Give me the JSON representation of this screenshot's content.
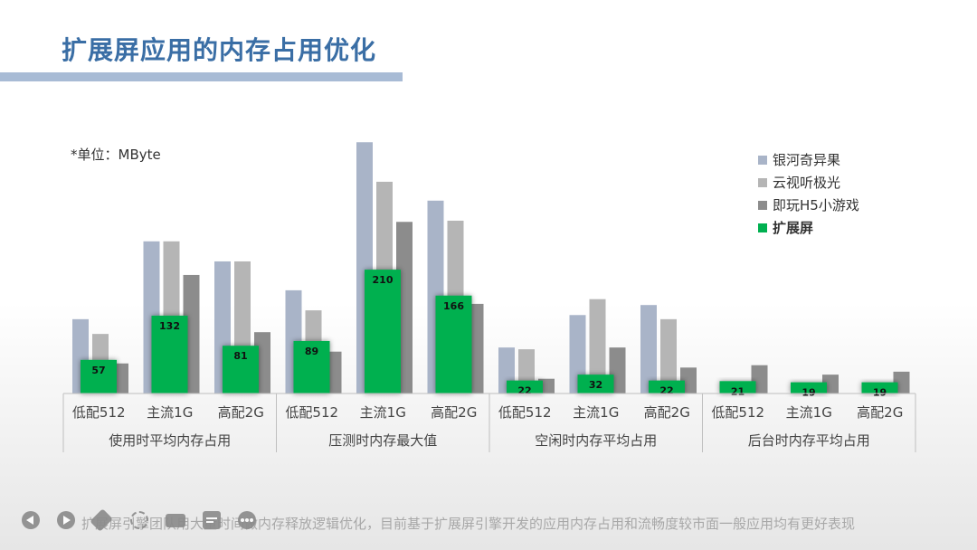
{
  "title": "扩展屏应用的内存占用优化",
  "unit_label": "*单位：MByte",
  "footer": "扩展屏引擎团队用大量时间做内存释放逻辑优化，目前基于扩展屏引擎开发的应用内存占用和流畅度较市面一般应用均有更好表现",
  "controls": [
    "prev-icon",
    "next-icon",
    "pen-icon",
    "focus-icon",
    "camera-icon",
    "subtitle-icon",
    "more-icon"
  ],
  "chart_data": {
    "type": "bar",
    "title": "",
    "groups": [
      "使用时平均内存占用",
      "压测时内存最大值",
      "空闲时内存平均占用",
      "后台时内存平均占用"
    ],
    "categories": [
      "低配512",
      "主流1G",
      "高配2G",
      "低配512",
      "主流1G",
      "高配2G",
      "低配512",
      "主流1G",
      "高配2G",
      "低配512",
      "主流1G",
      "高配2G"
    ],
    "series": [
      {
        "name": "银河奇异果",
        "color": "#a9b4c8",
        "values": [
          126,
          258,
          224,
          175,
          426,
          327,
          78,
          133,
          150,
          null,
          null,
          null
        ]
      },
      {
        "name": "云视听极光",
        "color": "#b5b5b5",
        "values": [
          101,
          258,
          224,
          141,
          359,
          293,
          75,
          160,
          126,
          null,
          null,
          null
        ]
      },
      {
        "name": "即玩H5小游戏",
        "color": "#8c8c8c",
        "values": [
          51,
          201,
          104,
          71,
          291,
          152,
          25,
          78,
          44,
          48,
          32,
          37
        ]
      },
      {
        "name": "扩展屏",
        "color": "#00b050",
        "values": [
          57,
          132,
          81,
          89,
          210,
          166,
          22,
          32,
          22,
          21,
          19,
          19
        ]
      }
    ],
    "ylim": [
      0,
      430
    ],
    "legend": "top-right"
  }
}
